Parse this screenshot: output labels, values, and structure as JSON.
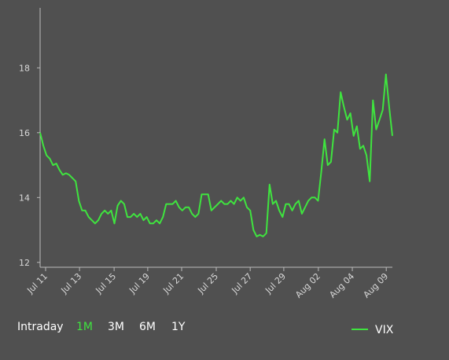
{
  "chart_data": {
    "type": "line",
    "series": [
      {
        "name": "VIX",
        "color": "#3fe43f",
        "values": [
          16.0,
          15.6,
          15.3,
          15.2,
          15.0,
          15.05,
          14.85,
          14.7,
          14.75,
          14.7,
          14.6,
          14.5,
          13.9,
          13.6,
          13.6,
          13.4,
          13.3,
          13.2,
          13.3,
          13.5,
          13.6,
          13.5,
          13.6,
          13.2,
          13.75,
          13.9,
          13.8,
          13.4,
          13.4,
          13.5,
          13.4,
          13.5,
          13.3,
          13.4,
          13.2,
          13.2,
          13.3,
          13.2,
          13.4,
          13.8,
          13.8,
          13.8,
          13.9,
          13.7,
          13.6,
          13.7,
          13.7,
          13.5,
          13.4,
          13.5,
          14.1,
          14.1,
          14.1,
          13.6,
          13.7,
          13.8,
          13.9,
          13.8,
          13.8,
          13.9,
          13.8,
          14.0,
          13.9,
          14.0,
          13.7,
          13.6,
          13.0,
          12.8,
          12.85,
          12.8,
          12.9,
          14.4,
          13.8,
          13.9,
          13.6,
          13.4,
          13.8,
          13.8,
          13.6,
          13.8,
          13.9,
          13.5,
          13.7,
          13.9,
          14.0,
          14.0,
          13.9,
          14.8,
          15.8,
          15.0,
          15.1,
          16.1,
          16.0,
          17.25,
          16.8,
          16.4,
          16.6,
          15.9,
          16.2,
          15.5,
          15.6,
          15.3,
          14.5,
          17.0,
          16.1,
          16.4,
          16.7,
          17.8,
          16.8,
          15.9
        ]
      }
    ],
    "xlim": [
      0,
      109
    ],
    "xticks": [
      {
        "value": 1.7,
        "label": "Jul 11"
      },
      {
        "value": 12.2,
        "label": "Jul 13"
      },
      {
        "value": 22.9,
        "label": "Jul 15"
      },
      {
        "value": 33.3,
        "label": "Jul 19"
      },
      {
        "value": 43.8,
        "label": "Jul 21"
      },
      {
        "value": 54.5,
        "label": "Jul 25"
      },
      {
        "value": 65.0,
        "label": "Jul 27"
      },
      {
        "value": 75.4,
        "label": "Jul 29"
      },
      {
        "value": 86.1,
        "label": "Aug 02"
      },
      {
        "value": 96.6,
        "label": "Aug 04"
      },
      {
        "value": 107.1,
        "label": "Aug 09"
      }
    ],
    "ylim": [
      11.85,
      19.85
    ],
    "yticks": [
      12,
      14,
      16,
      18
    ],
    "legend": "bottom-right"
  },
  "range_buttons": {
    "options": [
      "Intraday",
      "1M",
      "3M",
      "6M",
      "1Y"
    ],
    "active_index": 1
  }
}
